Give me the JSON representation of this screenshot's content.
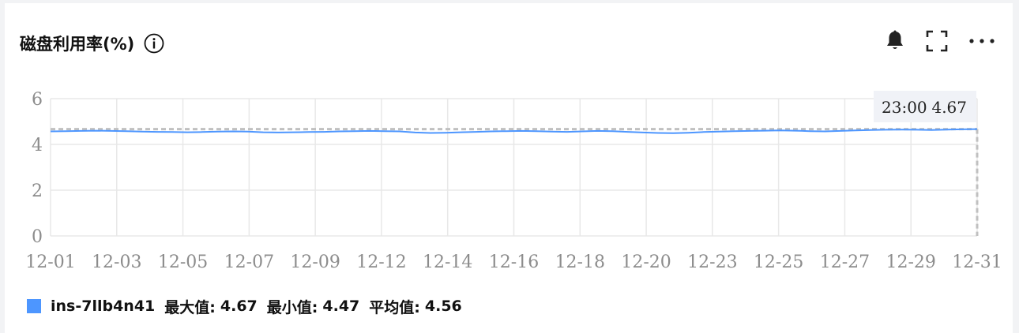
{
  "panel": {
    "title": "磁盘利用率(%)",
    "icons": [
      "info-icon",
      "bell-icon",
      "fullscreen-icon",
      "more-icon"
    ]
  },
  "tooltip": {
    "time": "23:00",
    "value": "4.67"
  },
  "legend": {
    "series_name": "ins-7llb4n41",
    "max_label": "最大值:",
    "max_value": "4.67",
    "min_label": "最小值:",
    "min_value": "4.47",
    "avg_label": "平均值:",
    "avg_value": "4.56"
  },
  "colors": {
    "series": "#4d96ff",
    "grid": "#e8e8e8",
    "reference": "#c0c0c0",
    "tick": "#8c8c8c",
    "tooltip_bg": "#f0f2f7"
  },
  "chart_data": {
    "type": "line",
    "xticks": [
      "12-01",
      "12-03",
      "12-05",
      "12-07",
      "12-09",
      "12-12",
      "12-14",
      "12-16",
      "12-18",
      "12-20",
      "12-23",
      "12-25",
      "12-27",
      "12-29",
      "12-31"
    ],
    "yticks": [
      0,
      2,
      4,
      6
    ],
    "ylim": [
      0,
      6
    ],
    "grid": true,
    "reference_line": 4.67,
    "series": [
      {
        "name": "ins-7llb4n41",
        "values": [
          4.57,
          4.58,
          4.59,
          4.6,
          4.59,
          4.58,
          4.56,
          4.55,
          4.54,
          4.53,
          4.54,
          4.56,
          4.57,
          4.56,
          4.53,
          4.52,
          4.53,
          4.54,
          4.55,
          4.57,
          4.58,
          4.59,
          4.58,
          4.57,
          4.52,
          4.5,
          4.51,
          4.53,
          4.55,
          4.57,
          4.58,
          4.59,
          4.58,
          4.56,
          4.55,
          4.57,
          4.59,
          4.58,
          4.55,
          4.52,
          4.5,
          4.49,
          4.51,
          4.54,
          4.56,
          4.58,
          4.59,
          4.6,
          4.61,
          4.6,
          4.58,
          4.57,
          4.59,
          4.61,
          4.63,
          4.64,
          4.65,
          4.64,
          4.63,
          4.65,
          4.66,
          4.67
        ]
      }
    ]
  }
}
